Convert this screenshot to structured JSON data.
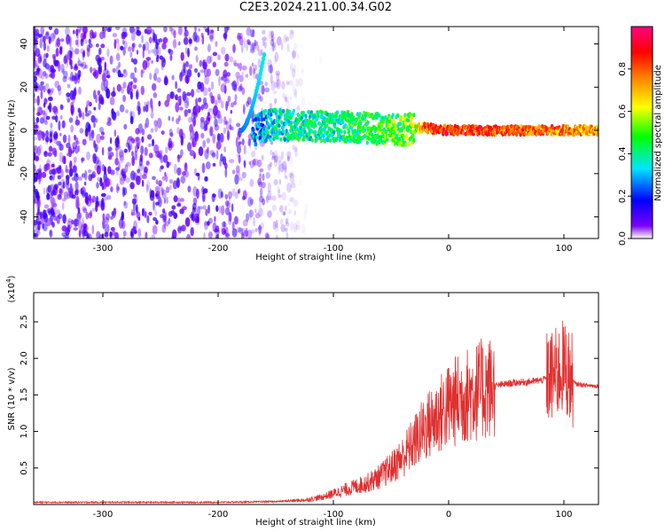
{
  "title": "C2E3.2024.211.00.34.G02",
  "chart_data": [
    {
      "type": "heatmap",
      "name": "spectrogram",
      "xlabel": "Height of straight line (km)",
      "ylabel": "Frequency (Hz)",
      "xlim": [
        -360,
        130
      ],
      "ylim": [
        -50,
        48
      ],
      "xticks": [
        -300,
        -200,
        -100,
        0,
        100
      ],
      "yticks": [
        -40,
        -20,
        0,
        20,
        40
      ],
      "grid": false,
      "colorbar": {
        "label": "Normalized spectral amplitude",
        "range": [
          0.0,
          1.0
        ],
        "ticks": [
          0.0,
          0.2,
          0.4,
          0.6,
          0.8
        ],
        "colormap": [
          "#ffffff",
          "#7a00ff",
          "#0000ff",
          "#00e5ff",
          "#00ff00",
          "#ffff00",
          "#ff8000",
          "#ff0000",
          "#ff0080"
        ]
      },
      "features": {
        "noise_region_x": [
          -360,
          -130
        ],
        "signal_line": {
          "x": [
            -170,
            -160,
            -150,
            -130,
            -100,
            -70,
            -40,
            -30,
            -20,
            0,
            50,
            100,
            130
          ],
          "y": [
            0,
            2,
            3,
            2,
            2,
            1,
            0,
            1,
            1,
            0,
            0,
            0,
            0
          ],
          "amplitude": [
            0.3,
            0.3,
            0.35,
            0.4,
            0.4,
            0.45,
            0.5,
            0.55,
            0.8,
            0.85,
            0.8,
            0.75,
            0.7
          ]
        },
        "chirp_segment": {
          "x": [
            -180,
            -160
          ],
          "y": [
            0,
            35
          ]
        }
      }
    },
    {
      "type": "line",
      "name": "snr",
      "xlabel": "Height of straight line (km)",
      "ylabel": "SNR (10 * v/v)",
      "exponent_label": "(x10^4)",
      "xlim": [
        -360,
        130
      ],
      "ylim": [
        0,
        2.9
      ],
      "xticks": [
        -300,
        -200,
        -100,
        0,
        100
      ],
      "yticks": [
        0.5,
        1.0,
        1.5,
        2.0,
        2.5
      ],
      "line_color": "#e03030",
      "series": [
        {
          "x": [
            -360,
            -300,
            -200,
            -150,
            -125,
            -110,
            -100,
            -90,
            -80,
            -70,
            -60,
            -50,
            -40,
            -30,
            -20,
            -10,
            0,
            10,
            20,
            30,
            40,
            50,
            60,
            70,
            80,
            90,
            95,
            100,
            105,
            110,
            120,
            130
          ],
          "values": [
            0.03,
            0.03,
            0.03,
            0.04,
            0.06,
            0.1,
            0.15,
            0.2,
            0.25,
            0.3,
            0.38,
            0.5,
            0.65,
            0.85,
            1.05,
            1.2,
            1.35,
            1.45,
            1.52,
            1.58,
            1.62,
            1.65,
            1.67,
            1.68,
            1.7,
            1.75,
            1.8,
            1.9,
            1.75,
            1.65,
            1.63,
            1.62
          ]
        }
      ]
    }
  ],
  "axis_labels": {
    "top_x": "Height of straight line (km)",
    "top_y": "Frequency (Hz)",
    "bottom_x": "Height of straight line (km)",
    "bottom_y": "SNR (10 * v/v)",
    "bottom_exp": "(x10",
    "bottom_exp_sup": "4",
    "bottom_exp_close": ")",
    "colorbar": "Normalized spectral amplitude"
  },
  "tick_labels": {
    "x": [
      "-300",
      "-200",
      "-100",
      "0",
      "100"
    ],
    "top_y": [
      "-40",
      "-20",
      "0",
      "20",
      "40"
    ],
    "bottom_y": [
      "0.5",
      "1.0",
      "1.5",
      "2.0",
      "2.5"
    ],
    "colorbar": [
      "0.0",
      "0.2",
      "0.4",
      "0.6",
      "0.8"
    ]
  }
}
